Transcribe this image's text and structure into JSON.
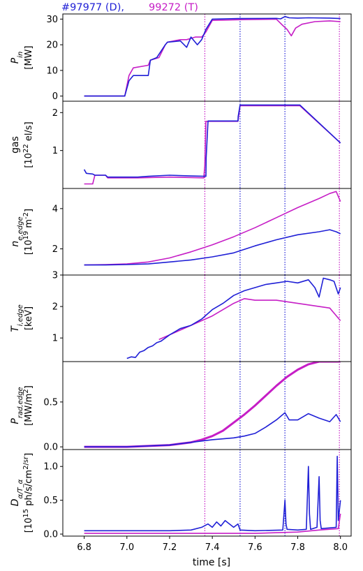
{
  "legend": {
    "d_label": "#97977 (D),",
    "t_label": "99272 (T)",
    "d_color": "#1f1fd6",
    "t_color": "#c61ec6"
  },
  "xaxis": {
    "label": "time [s]",
    "ticks": [
      "6.8",
      "7.0",
      "7.2",
      "7.4",
      "7.6",
      "7.8",
      "8.0"
    ],
    "range": [
      6.7,
      8.05
    ]
  },
  "vlines": {
    "d_times": [
      7.53,
      7.74
    ],
    "t_times": [
      7.365,
      7.995
    ]
  },
  "chart_data": [
    {
      "type": "line",
      "ylabel": [
        "P_in",
        "[MW]"
      ],
      "ylim": [
        -2,
        32
      ],
      "yticks": [
        0,
        10,
        20,
        30
      ],
      "series": [
        {
          "name": "#97977 (D)",
          "color": "#1f1fd6",
          "x": [
            6.8,
            6.99,
            7.01,
            7.03,
            7.1,
            7.11,
            7.14,
            7.18,
            7.19,
            7.25,
            7.28,
            7.3,
            7.33,
            7.35,
            7.37,
            7.4,
            7.52,
            7.7,
            7.72,
            7.74,
            7.76,
            7.8,
            7.85,
            7.95,
            8.0
          ],
          "y": [
            0,
            0,
            6,
            8,
            8,
            14,
            15,
            20,
            21,
            21.5,
            19,
            23,
            20,
            22,
            26,
            30,
            30.2,
            30.3,
            30.1,
            31,
            30.5,
            30.4,
            30.5,
            30.4,
            30.2
          ]
        },
        {
          "name": "99272 (T)",
          "color": "#c61ec6",
          "x": [
            6.8,
            6.99,
            7.01,
            7.03,
            7.1,
            7.11,
            7.15,
            7.18,
            7.19,
            7.25,
            7.28,
            7.32,
            7.35,
            7.37,
            7.4,
            7.55,
            7.65,
            7.7,
            7.73,
            7.75,
            7.77,
            7.79,
            7.82,
            7.88,
            7.95,
            8.0
          ],
          "y": [
            0,
            0,
            8,
            11,
            12,
            14,
            15,
            20,
            21,
            22,
            22,
            23,
            23,
            25,
            29.5,
            29.8,
            29.9,
            30,
            27.5,
            26,
            23.5,
            26.5,
            28,
            29,
            29.3,
            29
          ]
        }
      ]
    },
    {
      "type": "line",
      "ylabel": [
        "gas",
        "[10^22 el/s]"
      ],
      "ylim": [
        0.0,
        2.3
      ],
      "yticks": [
        1,
        2
      ],
      "series": [
        {
          "name": "#97977 (D)",
          "color": "#1f1fd6",
          "x": [
            6.8,
            6.81,
            6.84,
            6.85,
            6.9,
            6.91,
            7.05,
            7.1,
            7.2,
            7.3,
            7.37,
            7.371,
            7.38,
            7.52,
            7.521,
            7.53,
            7.71,
            7.72,
            7.81,
            8.0
          ],
          "y": [
            0.5,
            0.4,
            0.38,
            0.35,
            0.35,
            0.3,
            0.3,
            0.32,
            0.35,
            0.33,
            0.32,
            0.8,
            1.78,
            1.78,
            1.9,
            2.2,
            2.2,
            2.2,
            2.2,
            1.2
          ]
        },
        {
          "name": "99272 (T)",
          "color": "#c61ec6",
          "x": [
            6.8,
            6.84,
            6.85,
            6.9,
            6.91,
            7.05,
            7.2,
            7.36,
            7.365,
            7.37,
            7.52,
            7.53,
            7.72,
            7.81,
            8.0
          ],
          "y": [
            0.12,
            0.12,
            0.35,
            0.35,
            0.28,
            0.28,
            0.3,
            0.28,
            0.6,
            1.77,
            1.77,
            2.18,
            2.18,
            2.18,
            1.2
          ]
        }
      ]
    },
    {
      "type": "line",
      "ylabel": [
        "n_e,edge",
        "[10^19 m^-2]"
      ],
      "ylim": [
        0.7,
        5.0
      ],
      "yticks": [
        2,
        4
      ],
      "series": [
        {
          "name": "#97977 (D)",
          "color": "#1f1fd6",
          "x": [
            6.8,
            6.9,
            7.0,
            7.1,
            7.2,
            7.3,
            7.4,
            7.5,
            7.6,
            7.7,
            7.8,
            7.9,
            7.95,
            7.98,
            8.0
          ],
          "y": [
            1.2,
            1.2,
            1.22,
            1.25,
            1.35,
            1.45,
            1.6,
            1.8,
            2.15,
            2.45,
            2.7,
            2.85,
            2.95,
            2.85,
            2.75
          ]
        },
        {
          "name": "99272 (T)",
          "color": "#c61ec6",
          "x": [
            6.8,
            6.9,
            7.0,
            7.1,
            7.2,
            7.3,
            7.4,
            7.5,
            7.6,
            7.7,
            7.8,
            7.9,
            7.95,
            7.98,
            8.0
          ],
          "y": [
            1.2,
            1.22,
            1.25,
            1.35,
            1.55,
            1.85,
            2.2,
            2.6,
            3.05,
            3.55,
            4.05,
            4.5,
            4.75,
            4.85,
            4.35
          ]
        }
      ]
    },
    {
      "type": "line",
      "ylabel": [
        "T_i,edge",
        "[keV]"
      ],
      "ylim": [
        0.25,
        3.0
      ],
      "yticks": [
        1,
        2,
        3
      ],
      "series": [
        {
          "name": "#97977 (D)",
          "color": "#1f1fd6",
          "x": [
            7.0,
            7.02,
            7.04,
            7.06,
            7.08,
            7.1,
            7.12,
            7.14,
            7.16,
            7.2,
            7.25,
            7.3,
            7.35,
            7.4,
            7.45,
            7.5,
            7.55,
            7.6,
            7.65,
            7.7,
            7.75,
            7.8,
            7.85,
            7.88,
            7.9,
            7.92,
            7.95,
            7.97,
            7.99,
            8.0
          ],
          "y": [
            0.35,
            0.4,
            0.38,
            0.55,
            0.6,
            0.7,
            0.75,
            0.85,
            0.9,
            1.1,
            1.3,
            1.4,
            1.6,
            1.9,
            2.1,
            2.35,
            2.5,
            2.6,
            2.7,
            2.75,
            2.8,
            2.75,
            2.85,
            2.6,
            2.3,
            2.9,
            2.85,
            2.8,
            2.4,
            2.6
          ]
        },
        {
          "name": "99272 (T)",
          "color": "#c61ec6",
          "x": [
            7.15,
            7.2,
            7.25,
            7.3,
            7.35,
            7.4,
            7.45,
            7.5,
            7.55,
            7.6,
            7.7,
            7.8,
            7.9,
            7.95,
            8.0
          ],
          "y": [
            0.95,
            1.1,
            1.25,
            1.4,
            1.55,
            1.7,
            1.9,
            2.1,
            2.25,
            2.2,
            2.2,
            2.1,
            2.0,
            1.95,
            1.55
          ]
        }
      ]
    },
    {
      "type": "line",
      "ylabel": [
        "P_rad,edge",
        "[MW/m^2]"
      ],
      "ylim": [
        -0.03,
        0.95
      ],
      "yticks": [
        0.0,
        0.5
      ],
      "series": [
        {
          "name": "#97977 (D)",
          "color": "#1f1fd6",
          "x": [
            6.8,
            7.0,
            7.2,
            7.3,
            7.4,
            7.5,
            7.55,
            7.6,
            7.65,
            7.7,
            7.74,
            7.76,
            7.8,
            7.85,
            7.9,
            7.95,
            7.98,
            8.0
          ],
          "y": [
            0.0,
            0.0,
            0.02,
            0.05,
            0.08,
            0.1,
            0.12,
            0.15,
            0.22,
            0.3,
            0.38,
            0.3,
            0.3,
            0.37,
            0.32,
            0.28,
            0.36,
            0.28
          ]
        },
        {
          "name": "99272 (T)",
          "color": "#c61ec6",
          "x": [
            6.8,
            7.0,
            7.1,
            7.2,
            7.3,
            7.35,
            7.4,
            7.45,
            7.5,
            7.55,
            7.6,
            7.65,
            7.7,
            7.75,
            7.8,
            7.85,
            7.9,
            8.0
          ],
          "y": [
            0.0,
            0.0,
            0.01,
            0.02,
            0.05,
            0.08,
            0.12,
            0.18,
            0.27,
            0.36,
            0.46,
            0.57,
            0.68,
            0.78,
            0.86,
            0.92,
            0.95,
            0.95
          ]
        }
      ]
    },
    {
      "type": "line",
      "ylabel": [
        "D_α/T_α",
        "[10^15 ph/s/cm^2/sr]"
      ],
      "ylim": [
        -0.03,
        1.25
      ],
      "yticks": [
        0.0,
        0.5,
        1.0
      ],
      "series": [
        {
          "name": "#97977 (D)",
          "color": "#1f1fd6",
          "x": [
            6.8,
            7.2,
            7.3,
            7.35,
            7.38,
            7.4,
            7.42,
            7.44,
            7.46,
            7.5,
            7.52,
            7.53,
            7.6,
            7.73,
            7.74,
            7.745,
            7.75,
            7.8,
            7.84,
            7.85,
            7.855,
            7.86,
            7.89,
            7.9,
            7.905,
            7.91,
            7.98,
            7.985,
            7.99,
            8.0
          ],
          "y": [
            0.05,
            0.05,
            0.06,
            0.1,
            0.15,
            0.1,
            0.18,
            0.12,
            0.2,
            0.1,
            0.15,
            0.06,
            0.05,
            0.06,
            0.5,
            0.15,
            0.07,
            0.06,
            0.07,
            1.0,
            0.3,
            0.07,
            0.1,
            0.85,
            0.2,
            0.08,
            0.1,
            1.15,
            0.2,
            0.5
          ]
        },
        {
          "name": "99272 (T)",
          "color": "#c61ec6",
          "x": [
            6.8,
            7.4,
            7.6,
            7.8,
            7.9,
            7.99,
            8.0
          ],
          "y": [
            0.01,
            0.01,
            0.01,
            0.03,
            0.06,
            0.08,
            0.3
          ]
        }
      ]
    }
  ]
}
